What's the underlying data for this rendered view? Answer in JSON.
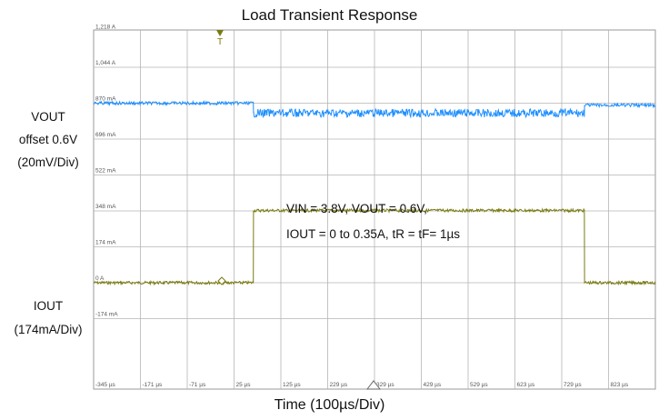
{
  "title": "Load Transient Response",
  "vout_label": {
    "line1": "VOUT",
    "line2": "offset 0.6V",
    "line3": "(20mV/Div)"
  },
  "iout_label": {
    "line1": "IOUT",
    "line2": "(174mA/Div)"
  },
  "xaxis_title": "Time (100µs/Div)",
  "annotation": {
    "line1": "VIN = 3.8V, VOUT = 0.6V,",
    "line2": "IOUT = 0 to 0.35A, tR = tF= 1µs"
  },
  "trigger_marker": "T",
  "colors": {
    "vout": "#1e8fff",
    "iout": "#7a7a12",
    "grid": "#b5b5b5",
    "frame": "#9a9a9a"
  },
  "chart_data": {
    "type": "line",
    "title": "Load Transient Response",
    "xlabel": "Time (100µs/Div)",
    "x_tick_labels": [
      "-345 µs",
      "-171 µs",
      "-71 µs",
      "25 µs",
      "125 µs",
      "229 µs",
      "329 µs",
      "429 µs",
      "529 µs",
      "623 µs",
      "729 µs",
      "823 µs"
    ],
    "y_tick_labels": [
      "1,218 A",
      "1,044 A",
      "870 mA",
      "696 mA",
      "522 mA",
      "348 mA",
      "174 mA",
      "0 A",
      "-174 mA"
    ],
    "y_tick_values_A": [
      1.218,
      1.044,
      0.87,
      0.696,
      0.522,
      0.348,
      0.174,
      0,
      -0.174
    ],
    "xlim_us": [
      -350,
      880
    ],
    "grid": true,
    "load_step_us": {
      "rise": 0,
      "fall": 725
    },
    "series": [
      {
        "name": "VOUT",
        "unit": "A-scale",
        "x_us": [
          -350,
          0,
          0,
          725,
          725,
          880
        ],
        "y": [
          0.87,
          0.87,
          0.822,
          0.822,
          0.86,
          0.86
        ]
      },
      {
        "name": "IOUT",
        "unit": "A",
        "x_us": [
          -350,
          0,
          0,
          725,
          725,
          880
        ],
        "y": [
          0.0,
          0.0,
          0.35,
          0.35,
          0.0,
          0.0
        ]
      }
    ]
  }
}
